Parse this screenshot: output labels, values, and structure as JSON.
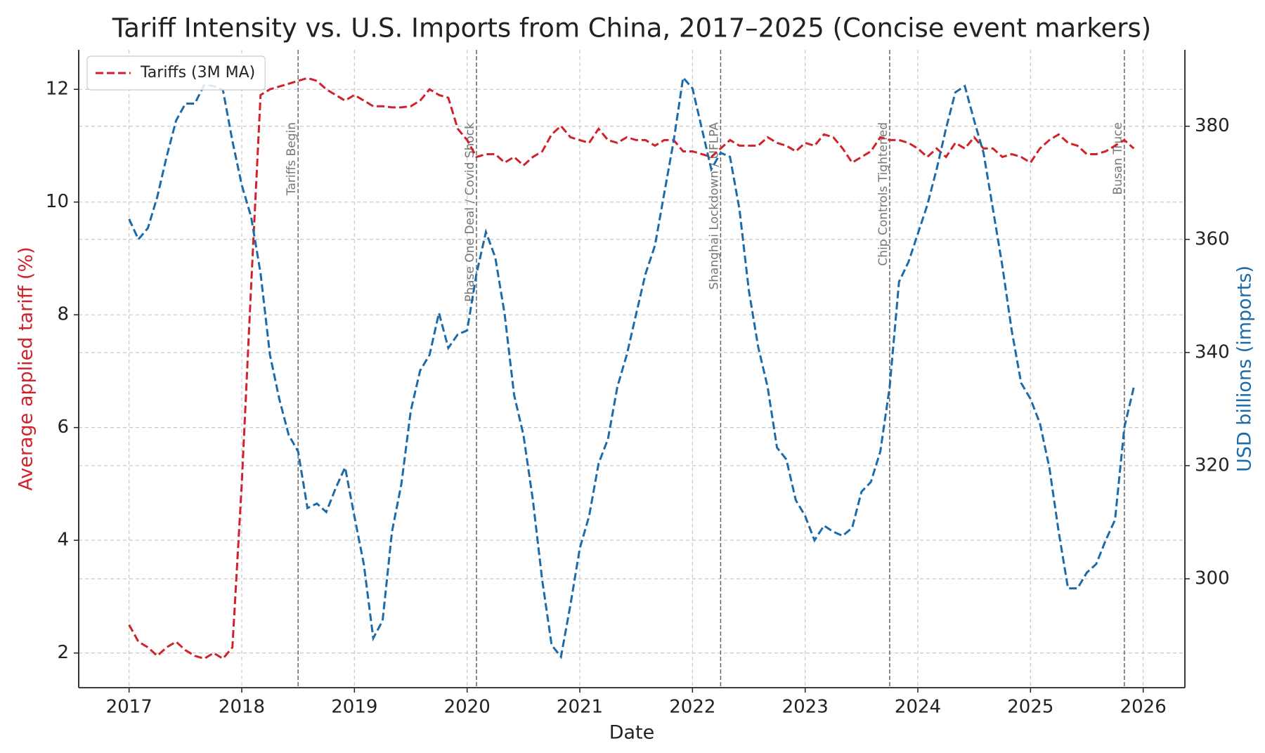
{
  "chart_data": {
    "type": "line",
    "title": "Tariff Intensity vs. U.S. Imports from China, 2017–2025 (Concise event markers)",
    "xlabel": "Date",
    "ylabel": "Average applied tariff (%)",
    "y2label": "USD billions (imports)",
    "x": [
      2017,
      2017.083,
      2017.167,
      2017.25,
      2017.333,
      2017.417,
      2017.5,
      2017.583,
      2017.667,
      2017.75,
      2017.833,
      2017.917,
      2018,
      2018.083,
      2018.167,
      2018.25,
      2018.333,
      2018.417,
      2018.5,
      2018.583,
      2018.667,
      2018.75,
      2018.833,
      2018.917,
      2019,
      2019.083,
      2019.167,
      2019.25,
      2019.333,
      2019.417,
      2019.5,
      2019.583,
      2019.667,
      2019.75,
      2019.833,
      2019.917,
      2020,
      2020.083,
      2020.167,
      2020.25,
      2020.333,
      2020.417,
      2020.5,
      2020.583,
      2020.667,
      2020.75,
      2020.833,
      2020.917,
      2021,
      2021.083,
      2021.167,
      2021.25,
      2021.333,
      2021.417,
      2021.5,
      2021.583,
      2021.667,
      2021.75,
      2021.833,
      2021.917,
      2022,
      2022.083,
      2022.167,
      2022.25,
      2022.333,
      2022.417,
      2022.5,
      2022.583,
      2022.667,
      2022.75,
      2022.833,
      2022.917,
      2023,
      2023.083,
      2023.167,
      2023.25,
      2023.333,
      2023.417,
      2023.5,
      2023.583,
      2023.667,
      2023.75,
      2023.833,
      2023.917,
      2024,
      2024.083,
      2024.167,
      2024.25,
      2024.333,
      2024.417,
      2024.5,
      2024.583,
      2024.667,
      2024.75,
      2024.833,
      2024.917,
      2025,
      2025.083,
      2025.167,
      2025.25,
      2025.333,
      2025.417,
      2025.5,
      2025.583,
      2025.667,
      2025.75,
      2025.833,
      2025.917
    ],
    "series": [
      {
        "name": "Tariffs (3M MA)",
        "color": "#d0222a",
        "linestyle": "dashed",
        "axis": "y",
        "values": [
          2.5,
          2.2,
          2.1,
          1.95,
          2.1,
          2.2,
          2.05,
          1.95,
          1.9,
          2.0,
          1.9,
          2.1,
          5.0,
          8.5,
          11.9,
          12.0,
          12.05,
          12.1,
          12.15,
          12.2,
          12.15,
          12.0,
          11.9,
          11.8,
          11.9,
          11.8,
          11.7,
          11.7,
          11.68,
          11.68,
          11.7,
          11.8,
          12.0,
          11.9,
          11.85,
          11.3,
          11.1,
          10.8,
          10.85,
          10.85,
          10.7,
          10.8,
          10.65,
          10.8,
          10.9,
          11.2,
          11.35,
          11.15,
          11.1,
          11.05,
          11.3,
          11.1,
          11.05,
          11.15,
          11.1,
          11.1,
          11.0,
          11.1,
          11.1,
          10.9,
          10.9,
          10.85,
          10.8,
          10.95,
          11.1,
          11.0,
          11.0,
          11.0,
          11.15,
          11.05,
          11.0,
          10.9,
          11.05,
          11.0,
          11.2,
          11.15,
          10.95,
          10.7,
          10.8,
          10.9,
          11.15,
          11.1,
          11.1,
          11.05,
          10.95,
          10.8,
          10.95,
          10.8,
          11.05,
          10.95,
          11.15,
          10.95,
          10.95,
          10.8,
          10.85,
          10.8,
          10.7,
          10.95,
          11.1,
          11.2,
          11.05,
          11.0,
          10.85,
          10.85,
          10.9,
          11.0,
          11.1,
          10.95
        ]
      },
      {
        "color": "#1c6aa8",
        "linestyle": "dashed",
        "axis": "y2",
        "values": [
          363.6,
          360,
          362,
          367.5,
          374.6,
          381,
          384,
          384,
          387.3,
          387.1,
          386.4,
          377.4,
          369.6,
          364,
          354,
          339.6,
          331.8,
          325.4,
          322.5,
          312.5,
          313.3,
          311.8,
          316,
          319.7,
          311,
          302.6,
          289.5,
          292.6,
          308.3,
          316.8,
          329.7,
          336.8,
          339.6,
          347,
          340.8,
          343.2,
          343.9,
          353.9,
          361.3,
          356.8,
          346.8,
          332.5,
          325.4,
          314,
          299.7,
          288.3,
          286.2,
          295.4,
          305.4,
          311.1,
          320.4,
          324.7,
          333.9,
          339.6,
          346.8,
          353.9,
          358.9,
          368.2,
          377.4,
          388.6,
          386.7,
          379.6,
          372.4,
          375.3,
          374.6,
          365.3,
          351,
          341,
          333.9,
          323.2,
          321.1,
          313.9,
          311.1,
          306.8,
          309.4,
          308.3,
          307.6,
          309,
          315.4,
          317.1,
          322.5,
          333.9,
          352.5,
          356,
          361,
          366,
          372.4,
          379.6,
          386,
          387.1,
          381,
          375.3,
          365.3,
          355.3,
          343.9,
          334.6,
          331.8,
          327.5,
          319.7,
          308.3,
          298.3,
          298.3,
          301.1,
          302.6,
          306.8,
          310.4,
          326.8,
          333.9
        ]
      }
    ],
    "events": [
      {
        "x": 2018.5,
        "label": "Tariffs Begin"
      },
      {
        "x": 2020.083,
        "label": "Phase One Deal / Covid Shock"
      },
      {
        "x": 2022.25,
        "label": "Shanghai Lockdown / UFLPA"
      },
      {
        "x": 2023.75,
        "label": "Chip Controls Tightened"
      },
      {
        "x": 2025.833,
        "label": "Busan Truce"
      }
    ],
    "xlim": [
      2016.553,
      2026.37
    ],
    "xticks": [
      2017,
      2018,
      2019,
      2020,
      2021,
      2022,
      2023,
      2024,
      2025,
      2026
    ],
    "ylim": [
      1.385,
      12.7
    ],
    "yticks": [
      2,
      4,
      6,
      8,
      10,
      12
    ],
    "y2lim": [
      280.75,
      393.5
    ],
    "y2ticks": [
      300,
      320,
      340,
      360,
      380
    ],
    "grid": true,
    "legend": "upper left"
  }
}
